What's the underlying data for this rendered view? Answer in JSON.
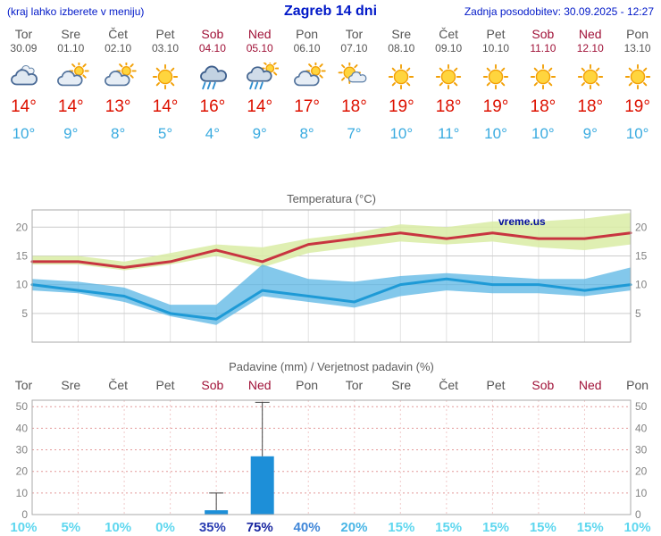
{
  "header": {
    "menu_hint": "(kraj lahko izberete v meniju)",
    "title": "Zagreb 14 dni",
    "last_update": "Zadnja posodobitev: 30.09.2025 - 12:27"
  },
  "watermark": "vreme.us",
  "days": [
    {
      "name": "Tor",
      "date": "30.09",
      "weekend": false,
      "icon": "cloud",
      "tmax": "14°",
      "tmin": "10°",
      "prob": "10%",
      "prob_color": "#5ed7ef"
    },
    {
      "name": "Sre",
      "date": "01.10",
      "weekend": false,
      "icon": "cloud-sun",
      "tmax": "14°",
      "tmin": "9°",
      "prob": "5%",
      "prob_color": "#5ed7ef"
    },
    {
      "name": "Čet",
      "date": "02.10",
      "weekend": false,
      "icon": "cloud-sun",
      "tmax": "13°",
      "tmin": "8°",
      "prob": "10%",
      "prob_color": "#5ed7ef"
    },
    {
      "name": "Pet",
      "date": "03.10",
      "weekend": false,
      "icon": "sun",
      "tmax": "14°",
      "tmin": "5°",
      "prob": "0%",
      "prob_color": "#5ed7ef"
    },
    {
      "name": "Sob",
      "date": "04.10",
      "weekend": true,
      "icon": "rain",
      "tmax": "16°",
      "tmin": "4°",
      "prob": "35%",
      "prob_color": "#2a3db2"
    },
    {
      "name": "Ned",
      "date": "05.10",
      "weekend": true,
      "icon": "rain-sun",
      "tmax": "14°",
      "tmin": "9°",
      "prob": "75%",
      "prob_color": "#1a27a0"
    },
    {
      "name": "Pon",
      "date": "06.10",
      "weekend": false,
      "icon": "cloud-sun",
      "tmax": "17°",
      "tmin": "8°",
      "prob": "40%",
      "prob_color": "#3f86d8"
    },
    {
      "name": "Tor",
      "date": "07.10",
      "weekend": false,
      "icon": "sun-cloud",
      "tmax": "18°",
      "tmin": "7°",
      "prob": "20%",
      "prob_color": "#49b6e6"
    },
    {
      "name": "Sre",
      "date": "08.10",
      "weekend": false,
      "icon": "sun",
      "tmax": "19°",
      "tmin": "10°",
      "prob": "15%",
      "prob_color": "#5ed7ef"
    },
    {
      "name": "Čet",
      "date": "09.10",
      "weekend": false,
      "icon": "sun",
      "tmax": "18°",
      "tmin": "11°",
      "prob": "15%",
      "prob_color": "#5ed7ef"
    },
    {
      "name": "Pet",
      "date": "10.10",
      "weekend": false,
      "icon": "sun",
      "tmax": "19°",
      "tmin": "10°",
      "prob": "15%",
      "prob_color": "#5ed7ef"
    },
    {
      "name": "Sob",
      "date": "11.10",
      "weekend": true,
      "icon": "sun",
      "tmax": "18°",
      "tmin": "10°",
      "prob": "15%",
      "prob_color": "#5ed7ef"
    },
    {
      "name": "Ned",
      "date": "12.10",
      "weekend": true,
      "icon": "sun",
      "tmax": "18°",
      "tmin": "9°",
      "prob": "15%",
      "prob_color": "#5ed7ef"
    },
    {
      "name": "Pon",
      "date": "13.10",
      "weekend": false,
      "icon": "sun",
      "tmax": "19°",
      "tmin": "10°",
      "prob": "10%",
      "prob_color": "#5ed7ef"
    }
  ],
  "chart_data": [
    {
      "type": "line",
      "title": "Temperatura (°C)",
      "x_labels": [
        "Tor",
        "Sre",
        "Čet",
        "Pet",
        "Sob",
        "Ned",
        "Pon",
        "Tor",
        "Sre",
        "Čet",
        "Pet",
        "Sob",
        "Ned",
        "Pon"
      ],
      "ylim": [
        0,
        23
      ],
      "yticks": [
        5,
        10,
        15,
        20
      ],
      "grid": true,
      "series": [
        {
          "name": "tmax",
          "color": "#c83540",
          "values": [
            14,
            14,
            13,
            14,
            16,
            14,
            17,
            18,
            19,
            18,
            19,
            18,
            18,
            19
          ]
        },
        {
          "name": "tmin",
          "color": "#1e9ad6",
          "values": [
            10,
            9,
            8,
            5,
            4,
            9,
            8,
            7,
            10,
            11,
            10,
            10,
            9,
            10
          ]
        }
      ],
      "bands": [
        {
          "name": "tmax-range",
          "color": "#d9eca4",
          "opacity": 0.85,
          "upper": [
            15,
            15,
            14,
            15.5,
            17,
            16.5,
            18,
            19,
            20.5,
            20,
            21,
            21,
            21.5,
            22.5
          ],
          "lower": [
            13.5,
            13.5,
            12.5,
            13.5,
            15,
            13,
            15.5,
            16.5,
            17.5,
            17,
            17.5,
            16.5,
            16,
            17
          ]
        },
        {
          "name": "tmin-range",
          "color": "#5ab6e4",
          "opacity": 0.75,
          "upper": [
            11,
            10.5,
            9.5,
            6.5,
            6.5,
            13.5,
            11,
            10.5,
            11.5,
            12,
            11.5,
            11,
            11,
            13
          ],
          "lower": [
            9,
            8.5,
            7,
            4.5,
            3,
            8,
            7,
            6,
            8,
            9,
            8.5,
            8.5,
            8,
            9
          ]
        }
      ]
    },
    {
      "type": "bar",
      "title": "Padavine (mm) / Verjetnost padavin (%)",
      "x_labels": [
        "Tor",
        "Sre",
        "Čet",
        "Pet",
        "Sob",
        "Ned",
        "Pon",
        "Tor",
        "Sre",
        "Čet",
        "Pet",
        "Sob",
        "Ned",
        "Pon"
      ],
      "ylim": [
        0,
        53
      ],
      "yticks": [
        0,
        10,
        20,
        30,
        40,
        50
      ],
      "bar_color": "#1d8fd8",
      "values": [
        0,
        0,
        0,
        0,
        2,
        27,
        0,
        0,
        0,
        0,
        0,
        0,
        0,
        0
      ],
      "whiskers": [
        0,
        0,
        0,
        0,
        10,
        52,
        0,
        0,
        0,
        0,
        0,
        0,
        0,
        0
      ],
      "probabilities": [
        "10%",
        "5%",
        "10%",
        "0%",
        "35%",
        "75%",
        "40%",
        "20%",
        "15%",
        "15%",
        "15%",
        "15%",
        "15%",
        "10%"
      ]
    }
  ]
}
